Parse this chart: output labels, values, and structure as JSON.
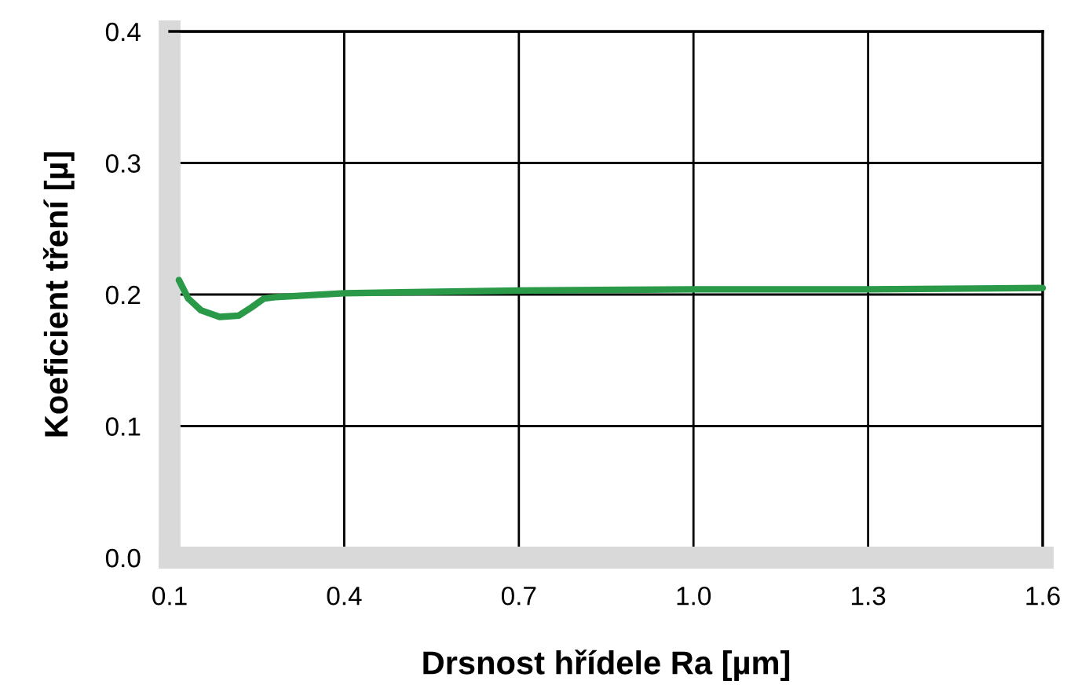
{
  "chart_data": {
    "type": "line",
    "xlabel": "Drsnost hřídele Ra [µm]",
    "ylabel": "Koeficient tření [µ]",
    "series": [
      {
        "color": "#2a9a48",
        "x": [
          0.116,
          0.132,
          0.154,
          0.186,
          0.219,
          0.24,
          0.262,
          0.281,
          0.4,
          0.7,
          1.0,
          1.3,
          1.6
        ],
        "values": [
          0.211,
          0.197,
          0.188,
          0.183,
          0.184,
          0.19,
          0.197,
          0.198,
          0.201,
          0.203,
          0.204,
          0.204,
          0.205
        ]
      }
    ],
    "xlim": [
      0.1,
      1.6
    ],
    "xticks": [
      0.1,
      0.4,
      0.7,
      {
        "value": 1,
        "label": "1.0"
      },
      1.3,
      1.6
    ],
    "ylim": [
      0.0,
      0.4
    ],
    "yticks": [
      {
        "value": 0,
        "label": "0.0"
      },
      0.1,
      0.2,
      0.3,
      0.4
    ],
    "grid": true,
    "marker": "none",
    "line_style": "solid"
  }
}
